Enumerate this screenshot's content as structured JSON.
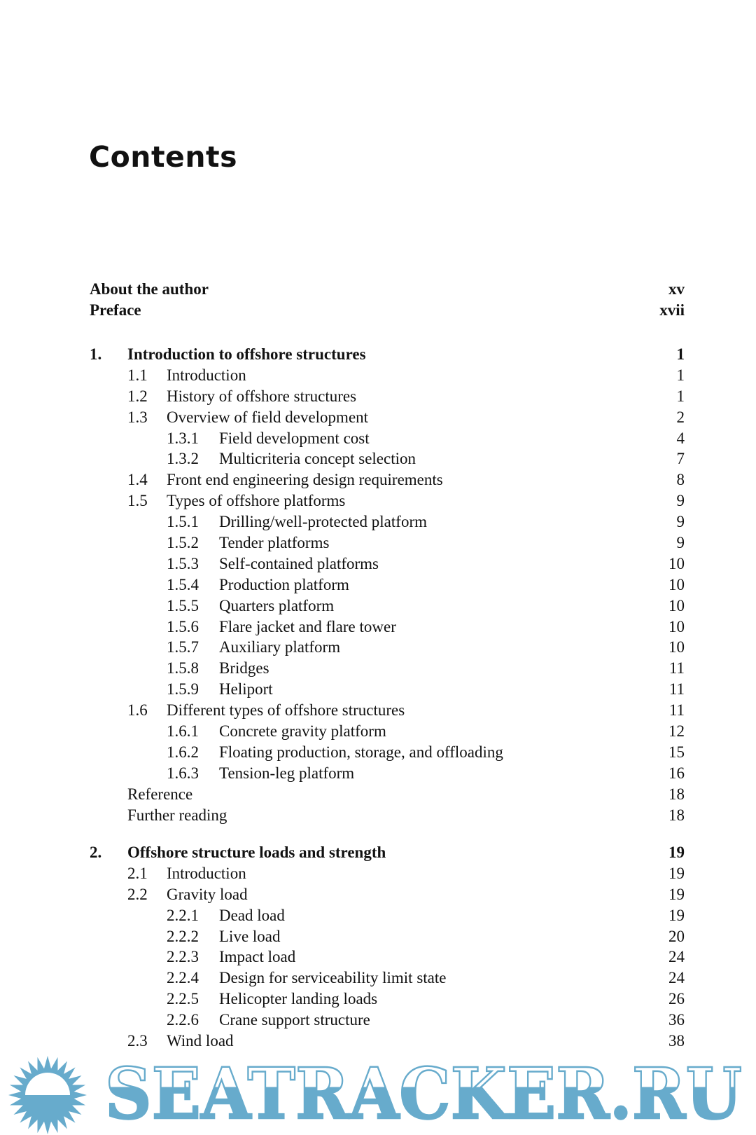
{
  "title": "Contents",
  "front_matter": [
    {
      "label": "About the author",
      "page": "xv"
    },
    {
      "label": "Preface",
      "page": "xvii"
    }
  ],
  "chapters": [
    {
      "number": "1.",
      "label": "Introduction to offshore structures",
      "page": "1",
      "entries": [
        {
          "level": 2,
          "number": "1.1",
          "label": "Introduction",
          "page": "1"
        },
        {
          "level": 2,
          "number": "1.2",
          "label": "History of offshore structures",
          "page": "1"
        },
        {
          "level": 2,
          "number": "1.3",
          "label": "Overview of field development",
          "page": "2"
        },
        {
          "level": 3,
          "number": "1.3.1",
          "label": "Field development cost",
          "page": "4"
        },
        {
          "level": 3,
          "number": "1.3.2",
          "label": "Multicriteria concept selection",
          "page": "7"
        },
        {
          "level": 2,
          "number": "1.4",
          "label": "Front end engineering design requirements",
          "page": "8"
        },
        {
          "level": 2,
          "number": "1.5",
          "label": "Types of offshore platforms",
          "page": "9"
        },
        {
          "level": 3,
          "number": "1.5.1",
          "label": "Drilling/well-protected platform",
          "page": "9"
        },
        {
          "level": 3,
          "number": "1.5.2",
          "label": "Tender platforms",
          "page": "9"
        },
        {
          "level": 3,
          "number": "1.5.3",
          "label": "Self-contained platforms",
          "page": "10"
        },
        {
          "level": 3,
          "number": "1.5.4",
          "label": "Production platform",
          "page": "10"
        },
        {
          "level": 3,
          "number": "1.5.5",
          "label": "Quarters platform",
          "page": "10"
        },
        {
          "level": 3,
          "number": "1.5.6",
          "label": "Flare jacket and flare tower",
          "page": "10"
        },
        {
          "level": 3,
          "number": "1.5.7",
          "label": "Auxiliary platform",
          "page": "10"
        },
        {
          "level": 3,
          "number": "1.5.8",
          "label": "Bridges",
          "page": "11"
        },
        {
          "level": 3,
          "number": "1.5.9",
          "label": "Heliport",
          "page": "11"
        },
        {
          "level": 2,
          "number": "1.6",
          "label": "Different types of offshore structures",
          "page": "11"
        },
        {
          "level": 3,
          "number": "1.6.1",
          "label": "Concrete gravity platform",
          "page": "12"
        },
        {
          "level": 3,
          "number": "1.6.2",
          "label": "Floating production, storage, and offloading",
          "page": "15"
        },
        {
          "level": 3,
          "number": "1.6.3",
          "label": "Tension-leg platform",
          "page": "16"
        },
        {
          "level": 1,
          "number": "",
          "label": "Reference",
          "page": "18"
        },
        {
          "level": 1,
          "number": "",
          "label": "Further reading",
          "page": "18"
        }
      ]
    },
    {
      "number": "2.",
      "label": "Offshore structure loads and strength",
      "page": "19",
      "entries": [
        {
          "level": 2,
          "number": "2.1",
          "label": "Introduction",
          "page": "19"
        },
        {
          "level": 2,
          "number": "2.2",
          "label": "Gravity load",
          "page": "19"
        },
        {
          "level": 3,
          "number": "2.2.1",
          "label": "Dead load",
          "page": "19"
        },
        {
          "level": 3,
          "number": "2.2.2",
          "label": "Live load",
          "page": "20"
        },
        {
          "level": 3,
          "number": "2.2.3",
          "label": "Impact load",
          "page": "24"
        },
        {
          "level": 3,
          "number": "2.2.4",
          "label": "Design for serviceability limit state",
          "page": "24"
        },
        {
          "level": 3,
          "number": "2.2.5",
          "label": "Helicopter landing loads",
          "page": "26"
        },
        {
          "level": 3,
          "number": "2.2.6",
          "label": "Crane support structure",
          "page": "36"
        },
        {
          "level": 2,
          "number": "2.3",
          "label": "Wind load",
          "page": "38"
        }
      ]
    }
  ],
  "watermark": {
    "text": "SEATRACKER.RU",
    "icon": "sun-icon",
    "color": "#67abcc"
  }
}
